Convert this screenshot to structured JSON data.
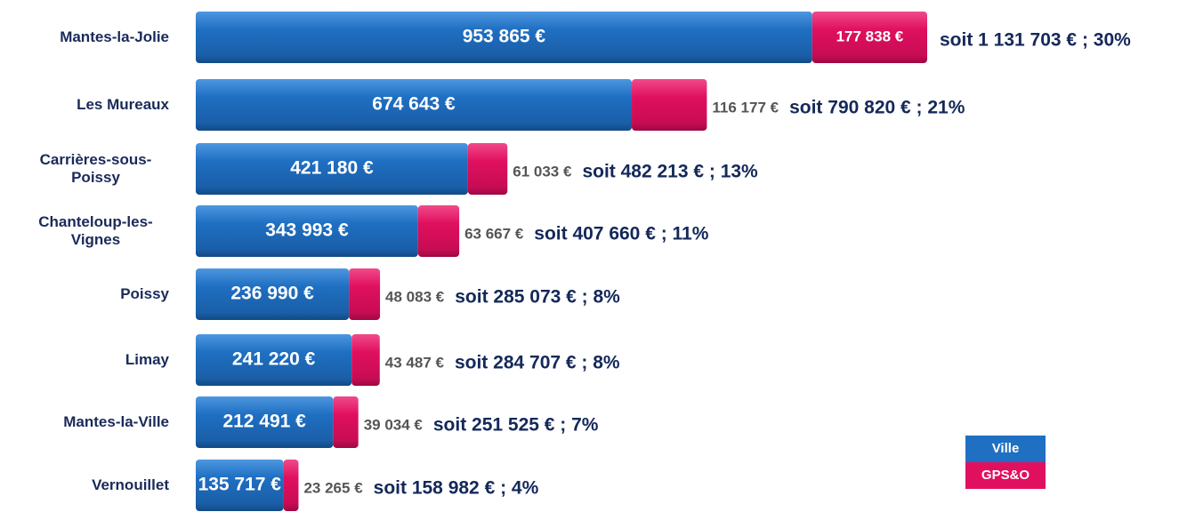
{
  "chart_data": {
    "type": "stacked-bar-horizontal",
    "categories": [
      "Mantes-la-Jolie",
      "Les Mureaux",
      "Carrières-sous-Poissy",
      "Chanteloup-les-Vignes",
      "Poissy",
      "Limay",
      "Mantes-la-Ville",
      "Vernouillet"
    ],
    "series": [
      {
        "name": "Ville",
        "color": "#1f6fc2",
        "values": [
          953865,
          674643,
          421180,
          343993,
          236990,
          241220,
          212491,
          135717
        ],
        "value_labels": [
          "953 865 €",
          "674 643 €",
          "421 180 €",
          "343 993 €",
          "236 990 €",
          "241 220 €",
          "212 491 €",
          "135 717 €"
        ]
      },
      {
        "name": "GPS&O",
        "color": "#e0105f",
        "values": [
          177838,
          116177,
          61033,
          63667,
          48083,
          43487,
          39034,
          23265
        ],
        "value_labels": [
          "177 838 €",
          "116 177 €",
          "61 033 €",
          "63 667 €",
          "48 083 €",
          "43 487 €",
          "39 034 €",
          "23 265 €"
        ]
      }
    ],
    "annotations": [
      "soit 1 131 703 € ; 30%",
      "soit 790 820 € ; 21%",
      "soit 482 213 € ; 13%",
      "soit 407 660 € ; 11%",
      "soit 285 073 € ; 8%",
      "soit 284 707 € ; 8%",
      "soit 251 525 € ; 7%",
      "soit 158 982 € ; 4%"
    ]
  }
}
